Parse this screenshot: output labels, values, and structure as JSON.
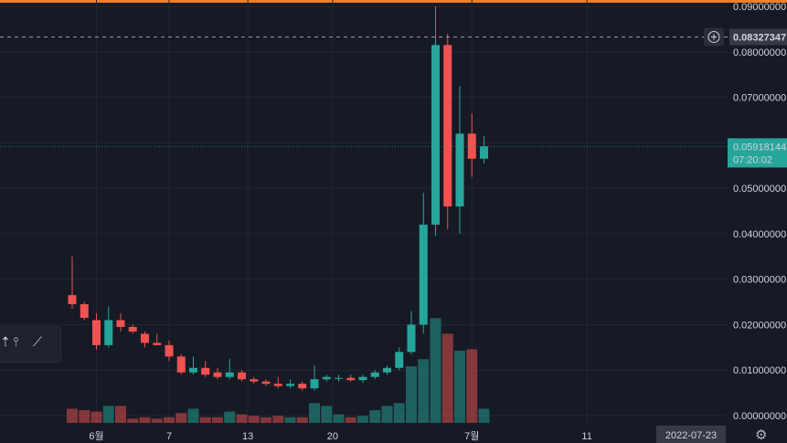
{
  "chart_data": {
    "type": "candlestick",
    "y_axis": {
      "ticks": [
        "0.09000000",
        "0.08000000",
        "0.07000000",
        "0.06000000",
        "0.05000000",
        "0.04000000",
        "0.03000000",
        "0.02000000",
        "0.01000000",
        "0.00000000"
      ],
      "range": [
        -0.0016,
        0.0914
      ]
    },
    "x_axis": {
      "tick_labels": [
        "6월",
        "7",
        "13",
        "20",
        "7월",
        "11"
      ],
      "cursor_label": "2022-07-23"
    },
    "crosshair_price": "0.08327347",
    "last_price": "0.05918144",
    "countdown": "07:20:02",
    "candles": [
      {
        "o": 0.0265,
        "h": 0.035,
        "l": 0.0235,
        "c": 0.0245
      },
      {
        "o": 0.0245,
        "h": 0.025,
        "l": 0.021,
        "c": 0.0215
      },
      {
        "o": 0.021,
        "h": 0.0225,
        "l": 0.0145,
        "c": 0.0155
      },
      {
        "o": 0.0155,
        "h": 0.024,
        "l": 0.015,
        "c": 0.021
      },
      {
        "o": 0.021,
        "h": 0.0225,
        "l": 0.0185,
        "c": 0.0195
      },
      {
        "o": 0.0195,
        "h": 0.02,
        "l": 0.018,
        "c": 0.0185
      },
      {
        "o": 0.018,
        "h": 0.0185,
        "l": 0.015,
        "c": 0.016
      },
      {
        "o": 0.016,
        "h": 0.018,
        "l": 0.0155,
        "c": 0.0155
      },
      {
        "o": 0.0155,
        "h": 0.0165,
        "l": 0.012,
        "c": 0.013
      },
      {
        "o": 0.013,
        "h": 0.0135,
        "l": 0.009,
        "c": 0.0095
      },
      {
        "o": 0.0095,
        "h": 0.013,
        "l": 0.009,
        "c": 0.0105
      },
      {
        "o": 0.0105,
        "h": 0.012,
        "l": 0.0085,
        "c": 0.009
      },
      {
        "o": 0.0095,
        "h": 0.0105,
        "l": 0.008,
        "c": 0.0085
      },
      {
        "o": 0.0085,
        "h": 0.0125,
        "l": 0.008,
        "c": 0.0095
      },
      {
        "o": 0.0095,
        "h": 0.01,
        "l": 0.0075,
        "c": 0.008
      },
      {
        "o": 0.008,
        "h": 0.0085,
        "l": 0.007,
        "c": 0.0075
      },
      {
        "o": 0.0075,
        "h": 0.008,
        "l": 0.0065,
        "c": 0.007
      },
      {
        "o": 0.007,
        "h": 0.0085,
        "l": 0.006,
        "c": 0.0065
      },
      {
        "o": 0.0065,
        "h": 0.008,
        "l": 0.006,
        "c": 0.007
      },
      {
        "o": 0.007,
        "h": 0.0075,
        "l": 0.0055,
        "c": 0.006
      },
      {
        "o": 0.006,
        "h": 0.011,
        "l": 0.0055,
        "c": 0.008
      },
      {
        "o": 0.008,
        "h": 0.009,
        "l": 0.0075,
        "c": 0.0085
      },
      {
        "o": 0.0082,
        "h": 0.009,
        "l": 0.0075,
        "c": 0.0083
      },
      {
        "o": 0.0083,
        "h": 0.009,
        "l": 0.0075,
        "c": 0.0078
      },
      {
        "o": 0.0078,
        "h": 0.009,
        "l": 0.0072,
        "c": 0.0085
      },
      {
        "o": 0.0085,
        "h": 0.01,
        "l": 0.008,
        "c": 0.0095
      },
      {
        "o": 0.0095,
        "h": 0.011,
        "l": 0.009,
        "c": 0.0105
      },
      {
        "o": 0.0105,
        "h": 0.015,
        "l": 0.01,
        "c": 0.014
      },
      {
        "o": 0.014,
        "h": 0.023,
        "l": 0.0135,
        "c": 0.02
      },
      {
        "o": 0.02,
        "h": 0.049,
        "l": 0.018,
        "c": 0.042
      },
      {
        "o": 0.042,
        "h": 0.09,
        "l": 0.0395,
        "c": 0.0815
      },
      {
        "o": 0.0815,
        "h": 0.084,
        "l": 0.041,
        "c": 0.046
      },
      {
        "o": 0.046,
        "h": 0.0725,
        "l": 0.04,
        "c": 0.062
      },
      {
        "o": 0.062,
        "h": 0.0665,
        "l": 0.0525,
        "c": 0.0565
      },
      {
        "o": 0.0565,
        "h": 0.0615,
        "l": 0.0555,
        "c": 0.0592
      }
    ],
    "volume": [
      0.1,
      0.09,
      0.08,
      0.12,
      0.12,
      0.03,
      0.04,
      0.03,
      0.04,
      0.07,
      0.1,
      0.04,
      0.04,
      0.08,
      0.06,
      0.05,
      0.04,
      0.05,
      0.04,
      0.04,
      0.14,
      0.12,
      0.06,
      0.04,
      0.05,
      0.09,
      0.12,
      0.14,
      0.4,
      0.45,
      0.74,
      0.63,
      0.51,
      0.52,
      0.1
    ],
    "volume_axis_max": 1.0
  }
}
